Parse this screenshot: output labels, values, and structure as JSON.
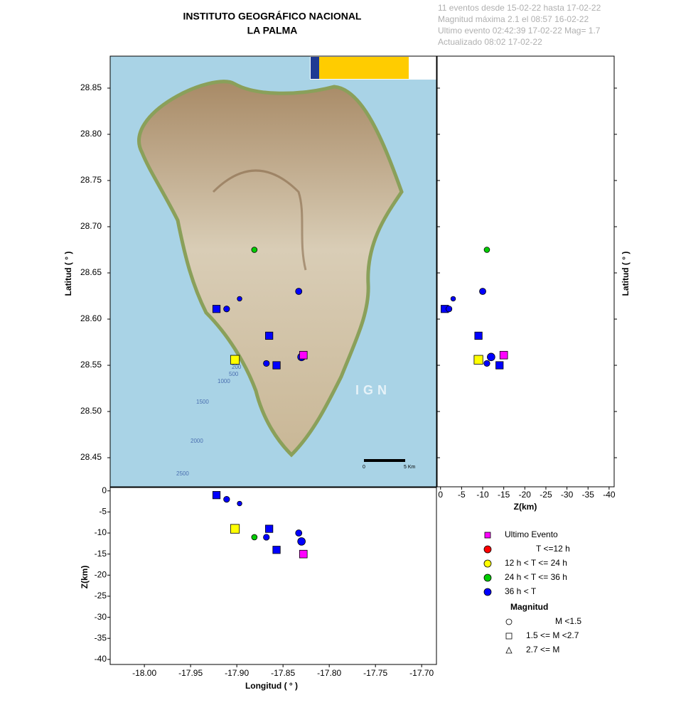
{
  "chart_data": {
    "type": "scatter",
    "title": [
      "INSTITUTO GEOGRÁFICO NACIONAL",
      "LA PALMA"
    ],
    "header_lines": [
      "11 eventos desde 15-02-22 hasta 17-02-22",
      "Magnitud máxima 2.1 el 08:57 16-02-22",
      "Ultimo evento   02:42:39 17-02-22  Mag= 1.7",
      "Actualizado   08:02  17-02-22"
    ],
    "xlabel": "Longitud ( ° )",
    "ylabel": "Latitud ( ° )",
    "zlabel": "Z(km)",
    "xlim": [
      -18.037,
      -17.684
    ],
    "ylim": [
      28.4185,
      28.8846
    ],
    "zlim": [
      0.8,
      -41.2
    ],
    "xticks": [
      {
        "value": -18.0,
        "label": "-18.00"
      },
      {
        "value": -17.95,
        "label": "-17.95"
      },
      {
        "value": -17.9,
        "label": "-17.90"
      },
      {
        "value": -17.85,
        "label": "-17.85"
      },
      {
        "value": -17.8,
        "label": "-17.80"
      },
      {
        "value": -17.75,
        "label": "-17.75"
      },
      {
        "value": -17.7,
        "label": "-17.70"
      }
    ],
    "yticks": [
      {
        "value": 28.45,
        "label": "28.45"
      },
      {
        "value": 28.5,
        "label": "28.50"
      },
      {
        "value": 28.55,
        "label": "28.55"
      },
      {
        "value": 28.6,
        "label": "28.60"
      },
      {
        "value": 28.65,
        "label": "28.65"
      },
      {
        "value": 28.7,
        "label": "28.70"
      },
      {
        "value": 28.75,
        "label": "28.75"
      },
      {
        "value": 28.8,
        "label": "28.80"
      },
      {
        "value": 28.85,
        "label": "28.85"
      }
    ],
    "zticks": [
      0,
      -5,
      -10,
      -15,
      -20,
      -25,
      -30,
      -35,
      -40
    ],
    "events": {
      "lon": [
        -17.833,
        -17.897,
        -17.922,
        -17.911,
        -17.865,
        -17.868,
        -17.857,
        -17.83,
        -17.881,
        -17.902,
        -17.828
      ],
      "lat": [
        28.63,
        28.622,
        28.611,
        28.611,
        28.582,
        28.552,
        28.55,
        28.559,
        28.675,
        28.556,
        28.561
      ],
      "depth": [
        -10,
        -3,
        -1,
        -2,
        -9,
        -11,
        -14,
        -12,
        -11,
        -9,
        -15
      ],
      "magnitude": [
        1.0,
        0.6,
        1.6,
        0.9,
        1.6,
        0.9,
        1.6,
        1.3,
        0.8,
        2.1,
        1.7
      ],
      "shape": [
        "circle",
        "circle",
        "square",
        "circle",
        "square",
        "circle",
        "square",
        "circle",
        "circle",
        "square",
        "square"
      ],
      "color": [
        "#0000ff",
        "#0000ff",
        "#0000ff",
        "#0000ff",
        "#0000ff",
        "#0000ff",
        "#0000ff",
        "#0000ff",
        "#00cc00",
        "#ffff00",
        "#ff00ff"
      ]
    },
    "legend": {
      "time": [
        {
          "label": "Ultimo Evento",
          "color": "#ff00ff",
          "shape": "square"
        },
        {
          "label": "T <=12 h",
          "color": "#ff0000",
          "shape": "circle"
        },
        {
          "label": "12 h  < T <= 24 h",
          "color": "#ffff00",
          "shape": "circle"
        },
        {
          "label": "24 h  < T <= 36 h",
          "color": "#00cc00",
          "shape": "circle"
        },
        {
          "label": "36 h <  T",
          "color": "#0000ff",
          "shape": "circle"
        }
      ],
      "magnitude_title": "Magnitud",
      "magnitude": [
        {
          "label": "M <1.5",
          "shape": "circle"
        },
        {
          "label": "1.5 <= M <2.7",
          "shape": "square"
        },
        {
          "label": "2.7 <= M",
          "shape": "triangle"
        }
      ]
    },
    "map_labels": [
      "IGN",
      "200",
      "500",
      "1000",
      "1500",
      "2000",
      "2500",
      "0",
      "5 Km"
    ]
  }
}
